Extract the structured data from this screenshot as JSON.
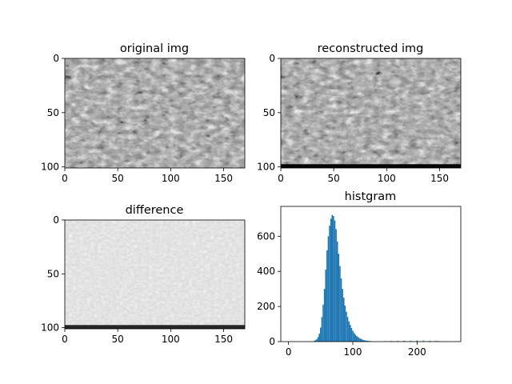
{
  "chart_data": [
    {
      "type": "heatmap",
      "title": "original img",
      "image_shape": [
        101,
        170
      ],
      "colormap": "gray",
      "bottom_dark_band": false,
      "xlim": [
        0,
        170
      ],
      "ylim": [
        101,
        0
      ],
      "xticks": [
        0,
        50,
        100,
        150
      ],
      "yticks": [
        0,
        50,
        100
      ]
    },
    {
      "type": "heatmap",
      "title": "reconstructed img",
      "image_shape": [
        101,
        170
      ],
      "colormap": "gray",
      "bottom_dark_band": true,
      "xlim": [
        0,
        170
      ],
      "ylim": [
        101,
        0
      ],
      "xticks": [
        0,
        50,
        100,
        150
      ],
      "yticks": [
        0,
        50,
        100
      ]
    },
    {
      "type": "heatmap",
      "title": "difference",
      "image_shape": [
        101,
        170
      ],
      "colormap": "gray",
      "bottom_dark_band": true,
      "xlim": [
        0,
        170
      ],
      "ylim": [
        101,
        0
      ],
      "xticks": [
        0,
        50,
        100,
        150
      ],
      "yticks": [
        0,
        50,
        100
      ]
    },
    {
      "type": "bar",
      "title": "histgram",
      "bar_color": "#1f77b4",
      "xlim": [
        -12,
        268
      ],
      "ylim": [
        0,
        770
      ],
      "xticks": [
        0,
        100,
        200
      ],
      "yticks": [
        0,
        200,
        400,
        600
      ],
      "x": [
        38,
        40,
        42,
        44,
        46,
        48,
        50,
        52,
        54,
        56,
        58,
        60,
        62,
        64,
        66,
        68,
        70,
        72,
        74,
        76,
        78,
        80,
        82,
        84,
        86,
        88,
        90,
        92,
        94,
        96,
        98,
        100,
        102,
        104,
        106,
        108,
        110,
        112,
        114,
        116,
        118,
        120,
        122,
        124,
        126,
        128,
        130,
        150,
        160,
        170,
        180,
        190,
        200,
        210,
        220,
        230,
        234
      ],
      "values": [
        2,
        4,
        8,
        14,
        26,
        45,
        80,
        140,
        210,
        300,
        410,
        520,
        600,
        660,
        700,
        722,
        715,
        690,
        640,
        570,
        500,
        430,
        360,
        300,
        250,
        205,
        170,
        140,
        115,
        95,
        78,
        62,
        50,
        40,
        32,
        26,
        21,
        17,
        13,
        10,
        8,
        6,
        5,
        4,
        3,
        2,
        2,
        3,
        4,
        4,
        5,
        5,
        6,
        6,
        5,
        4,
        3
      ]
    }
  ]
}
